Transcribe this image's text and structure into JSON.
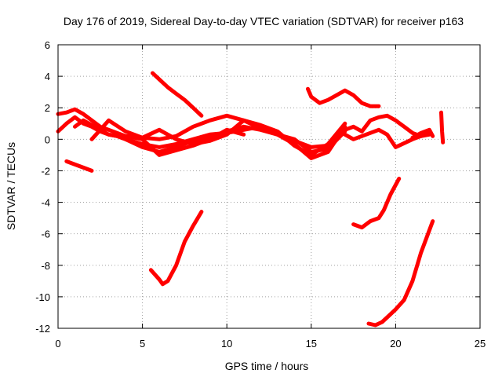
{
  "chart_data": {
    "type": "line",
    "title": "Day 176 of 2019, Sidereal Day-to-day VTEC variation (SDTVAR) for receiver p163",
    "xlabel": "GPS time / hours",
    "ylabel": "SDTVAR / TECUs",
    "xlim": [
      0,
      25
    ],
    "ylim": [
      -12,
      6
    ],
    "xticks": [
      0,
      5,
      10,
      15,
      20,
      25
    ],
    "yticks": [
      -12,
      -10,
      -8,
      -6,
      -4,
      -2,
      0,
      2,
      4,
      6
    ],
    "grid": true,
    "color": "#ff0000",
    "series": [
      {
        "name": "trace-1",
        "x": [
          0,
          0.5,
          1,
          1.5,
          2,
          2.5,
          3,
          3.5,
          4,
          5,
          6,
          7,
          8,
          9,
          10,
          11,
          12,
          13,
          14,
          15,
          16,
          17
        ],
        "y": [
          0.5,
          1.0,
          1.4,
          1.0,
          0.8,
          0.5,
          0.3,
          0.2,
          0.0,
          -0.5,
          -0.8,
          -0.5,
          -0.1,
          0.1,
          0.5,
          0.8,
          0.6,
          0.3,
          0.0,
          -0.8,
          -0.6,
          0.5
        ]
      },
      {
        "name": "trace-2",
        "x": [
          0,
          0.5,
          1,
          1.5,
          2,
          2.5,
          3,
          4,
          5,
          6,
          7,
          8,
          9,
          10,
          11,
          12,
          13,
          14,
          15,
          16,
          17
        ],
        "y": [
          1.6,
          1.7,
          1.9,
          1.6,
          1.2,
          0.8,
          0.6,
          0.2,
          0.1,
          0.0,
          0.2,
          0.8,
          1.2,
          1.5,
          1.2,
          0.7,
          0.3,
          -0.1,
          -0.5,
          -0.4,
          0.6
        ]
      },
      {
        "name": "trace-3",
        "x": [
          1,
          1.5,
          2,
          2.5,
          3,
          3.5,
          4,
          5,
          6,
          7,
          8,
          9,
          10,
          11,
          12,
          13,
          14,
          15,
          16,
          17
        ],
        "y": [
          0.8,
          1.2,
          0.9,
          0.6,
          0.3,
          0.2,
          0.0,
          -0.3,
          -0.5,
          -0.3,
          0.0,
          0.3,
          0.4,
          0.6,
          0.8,
          0.3,
          -0.3,
          -1.2,
          -0.8,
          0.8
        ]
      },
      {
        "name": "trace-4",
        "x": [
          2,
          3,
          4,
          5,
          6,
          7,
          8,
          9,
          10,
          11,
          12,
          13,
          14,
          15,
          16,
          17
        ],
        "y": [
          0.0,
          1.2,
          0.5,
          0.1,
          0.6,
          0.0,
          -0.3,
          -0.1,
          0.3,
          1.2,
          0.9,
          0.5,
          -0.4,
          -1.0,
          -0.3,
          1.0
        ]
      },
      {
        "name": "trace-5",
        "x": [
          4,
          5,
          6,
          7,
          8,
          9,
          10,
          11
        ],
        "y": [
          0.2,
          0.0,
          -1.0,
          -0.7,
          -0.4,
          0.0,
          0.6,
          0.3
        ]
      },
      {
        "name": "trace-6",
        "x": [
          0.5,
          1,
          1.5,
          2
        ],
        "y": [
          -1.4,
          -1.6,
          -1.8,
          -2.0
        ]
      },
      {
        "name": "trace-7",
        "x": [
          5.6,
          6,
          6.5,
          7,
          7.5,
          8,
          8.5
        ],
        "y": [
          4.2,
          3.8,
          3.3,
          2.9,
          2.5,
          2.0,
          1.5
        ]
      },
      {
        "name": "trace-8",
        "x": [
          5.5,
          6,
          6.2,
          6.5,
          7,
          7.5,
          8,
          8.5
        ],
        "y": [
          -8.3,
          -8.9,
          -9.2,
          -9.0,
          -8.0,
          -6.5,
          -5.5,
          -4.6
        ]
      },
      {
        "name": "trace-9",
        "x": [
          14.8,
          15,
          15.5,
          16,
          16.5,
          17,
          17.5,
          18,
          18.5,
          19
        ],
        "y": [
          3.2,
          2.7,
          2.3,
          2.5,
          2.8,
          3.1,
          2.8,
          2.3,
          2.1,
          2.1
        ]
      },
      {
        "name": "trace-10",
        "x": [
          17,
          17.5,
          18,
          18.5,
          19,
          19.5,
          20,
          20.5,
          21,
          21.5,
          22
        ],
        "y": [
          0.6,
          0.8,
          0.5,
          1.2,
          1.4,
          1.5,
          1.2,
          0.8,
          0.4,
          0.2,
          0.3
        ]
      },
      {
        "name": "trace-11",
        "x": [
          17,
          17.5,
          18,
          18.5,
          19,
          19.5,
          20,
          21,
          22
        ],
        "y": [
          0.3,
          0.0,
          0.2,
          0.4,
          0.6,
          0.3,
          -0.5,
          0.0,
          0.4
        ]
      },
      {
        "name": "trace-12",
        "x": [
          17.5,
          18,
          18.5,
          19,
          19.3,
          19.7,
          20.2
        ],
        "y": [
          -5.4,
          -5.6,
          -5.2,
          -5.0,
          -4.5,
          -3.5,
          -2.5
        ]
      },
      {
        "name": "trace-13",
        "x": [
          18.4,
          18.8,
          19.2,
          19.6,
          20,
          20.5,
          21,
          21.5,
          22.2
        ],
        "y": [
          -11.7,
          -11.8,
          -11.6,
          -11.2,
          -10.8,
          -10.2,
          -9.0,
          -7.2,
          -5.2
        ]
      },
      {
        "name": "trace-14",
        "x": [
          21,
          21.5,
          22,
          22.2
        ],
        "y": [
          0.1,
          0.4,
          0.6,
          0.2
        ]
      },
      {
        "name": "trace-15",
        "x": [
          22.7,
          22.75,
          22.8
        ],
        "y": [
          1.7,
          0.5,
          -0.2
        ]
      }
    ]
  }
}
